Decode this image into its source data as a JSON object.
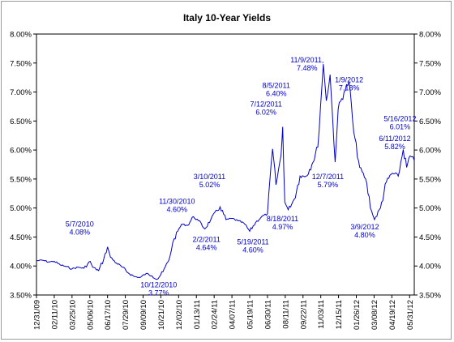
{
  "chart_data": {
    "type": "line",
    "title": "Italy 10-Year Yields",
    "xlabel": "",
    "ylabel": "",
    "ylim": [
      3.5,
      8.0
    ],
    "y_ticks": [
      "3.50%",
      "4.00%",
      "4.50%",
      "5.00%",
      "5.50%",
      "6.00%",
      "6.50%",
      "7.00%",
      "7.50%",
      "8.00%"
    ],
    "x_ticks": [
      "12/31/09",
      "02/11/10",
      "03/25/10",
      "05/06/10",
      "06/17/10",
      "07/29/10",
      "09/09/10",
      "10/21/10",
      "12/02/10",
      "01/13/11",
      "02/24/11",
      "04/07/11",
      "05/19/11",
      "06/30/11",
      "08/11/11",
      "09/22/11",
      "11/03/11",
      "12/15/11",
      "01/26/12",
      "03/08/12",
      "04/19/12",
      "05/31/12"
    ],
    "x_start": "12/31/09",
    "x_end": "06/11/12",
    "grid": false,
    "legend": "none",
    "line_color": "#0000cc",
    "series": [
      {
        "values": [
          {
            "x": "12/31/09",
            "y": 4.09
          },
          {
            "x": "01/14/10",
            "y": 4.1
          },
          {
            "x": "01/28/10",
            "y": 4.07
          },
          {
            "x": "02/11/10",
            "y": 4.08
          },
          {
            "x": "02/25/10",
            "y": 4.02
          },
          {
            "x": "03/11/10",
            "y": 3.99
          },
          {
            "x": "03/25/10",
            "y": 3.95
          },
          {
            "x": "04/08/10",
            "y": 3.98
          },
          {
            "x": "04/22/10",
            "y": 3.96
          },
          {
            "x": "05/07/10",
            "y": 4.08
          },
          {
            "x": "05/13/10",
            "y": 3.98
          },
          {
            "x": "05/27/10",
            "y": 3.92
          },
          {
            "x": "06/08/10",
            "y": 4.12
          },
          {
            "x": "06/17/10",
            "y": 4.33
          },
          {
            "x": "06/24/10",
            "y": 4.15
          },
          {
            "x": "07/08/10",
            "y": 4.05
          },
          {
            "x": "07/22/10",
            "y": 3.98
          },
          {
            "x": "08/05/10",
            "y": 3.88
          },
          {
            "x": "08/19/10",
            "y": 3.82
          },
          {
            "x": "09/02/10",
            "y": 3.8
          },
          {
            "x": "09/16/10",
            "y": 3.87
          },
          {
            "x": "09/30/10",
            "y": 3.83
          },
          {
            "x": "10/12/10",
            "y": 3.77
          },
          {
            "x": "10/26/10",
            "y": 3.9
          },
          {
            "x": "11/09/10",
            "y": 4.1
          },
          {
            "x": "11/18/10",
            "y": 4.4
          },
          {
            "x": "11/30/10",
            "y": 4.6
          },
          {
            "x": "12/09/10",
            "y": 4.72
          },
          {
            "x": "12/23/10",
            "y": 4.7
          },
          {
            "x": "01/06/11",
            "y": 4.85
          },
          {
            "x": "01/18/11",
            "y": 4.78
          },
          {
            "x": "02/02/11",
            "y": 4.64
          },
          {
            "x": "02/16/11",
            "y": 4.8
          },
          {
            "x": "03/10/11",
            "y": 5.02
          },
          {
            "x": "03/24/11",
            "y": 4.8
          },
          {
            "x": "04/07/11",
            "y": 4.82
          },
          {
            "x": "04/21/11",
            "y": 4.78
          },
          {
            "x": "05/05/11",
            "y": 4.74
          },
          {
            "x": "05/19/11",
            "y": 4.6
          },
          {
            "x": "06/02/11",
            "y": 4.75
          },
          {
            "x": "06/16/11",
            "y": 4.85
          },
          {
            "x": "06/30/11",
            "y": 4.9
          },
          {
            "x": "07/12/11",
            "y": 6.02
          },
          {
            "x": "07/20/11",
            "y": 5.4
          },
          {
            "x": "08/01/11",
            "y": 5.9
          },
          {
            "x": "08/05/11",
            "y": 6.4
          },
          {
            "x": "08/10/11",
            "y": 5.1
          },
          {
            "x": "08/18/11",
            "y": 4.97
          },
          {
            "x": "09/01/11",
            "y": 5.15
          },
          {
            "x": "09/15/11",
            "y": 5.55
          },
          {
            "x": "09/29/11",
            "y": 5.55
          },
          {
            "x": "10/13/11",
            "y": 5.75
          },
          {
            "x": "10/27/11",
            "y": 6.05
          },
          {
            "x": "11/09/11",
            "y": 7.48
          },
          {
            "x": "11/16/11",
            "y": 6.85
          },
          {
            "x": "11/25/11",
            "y": 7.3
          },
          {
            "x": "12/07/11",
            "y": 5.79
          },
          {
            "x": "12/14/11",
            "y": 6.7
          },
          {
            "x": "12/28/11",
            "y": 7.0
          },
          {
            "x": "01/09/12",
            "y": 7.18
          },
          {
            "x": "01/20/12",
            "y": 6.3
          },
          {
            "x": "02/03/12",
            "y": 5.7
          },
          {
            "x": "02/17/12",
            "y": 5.5
          },
          {
            "x": "03/02/12",
            "y": 4.95
          },
          {
            "x": "03/09/12",
            "y": 4.8
          },
          {
            "x": "03/23/12",
            "y": 5.0
          },
          {
            "x": "04/06/12",
            "y": 5.45
          },
          {
            "x": "04/20/12",
            "y": 5.6
          },
          {
            "x": "05/04/12",
            "y": 5.55
          },
          {
            "x": "05/16/12",
            "y": 6.01
          },
          {
            "x": "05/24/12",
            "y": 5.7
          },
          {
            "x": "06/01/12",
            "y": 5.9
          },
          {
            "x": "06/11/12",
            "y": 5.82
          }
        ]
      }
    ],
    "annotations": [
      {
        "date": "5/7/2010",
        "value": "4.08%",
        "x": "05/07/10",
        "y": 4.08
      },
      {
        "date": "10/12/2010",
        "value": "3.77%",
        "x": "10/12/10",
        "y": 3.77
      },
      {
        "date": "11/30/2010",
        "value": "4.60%",
        "x": "11/30/10",
        "y": 4.6
      },
      {
        "date": "2/2/2011",
        "value": "4.64%",
        "x": "02/02/11",
        "y": 4.64
      },
      {
        "date": "3/10/2011",
        "value": "5.02%",
        "x": "03/10/11",
        "y": 5.02
      },
      {
        "date": "5/19/2011",
        "value": "4.60%",
        "x": "05/19/11",
        "y": 4.6
      },
      {
        "date": "7/12/2011",
        "value": "6.02%",
        "x": "07/12/11",
        "y": 6.02
      },
      {
        "date": "8/5/2011",
        "value": "6.40%",
        "x": "08/05/11",
        "y": 6.4
      },
      {
        "date": "8/18/2011",
        "value": "4.97%",
        "x": "08/18/11",
        "y": 4.97
      },
      {
        "date": "11/9/2011,",
        "value": "7.48%",
        "x": "11/09/11",
        "y": 7.48
      },
      {
        "date": "12/7/2011",
        "value": "5.79%",
        "x": "12/07/11",
        "y": 5.79
      },
      {
        "date": "1/9/2012",
        "value": "7.18%",
        "x": "01/09/12",
        "y": 7.18
      },
      {
        "date": "3/9/2012",
        "value": "4.80%",
        "x": "03/09/12",
        "y": 4.8
      },
      {
        "date": "5/16/2012",
        "value": "6.01%",
        "x": "05/16/12",
        "y": 6.01
      },
      {
        "date": "6/11/2012",
        "value": "5.82%",
        "x": "06/11/12",
        "y": 5.82
      }
    ]
  }
}
